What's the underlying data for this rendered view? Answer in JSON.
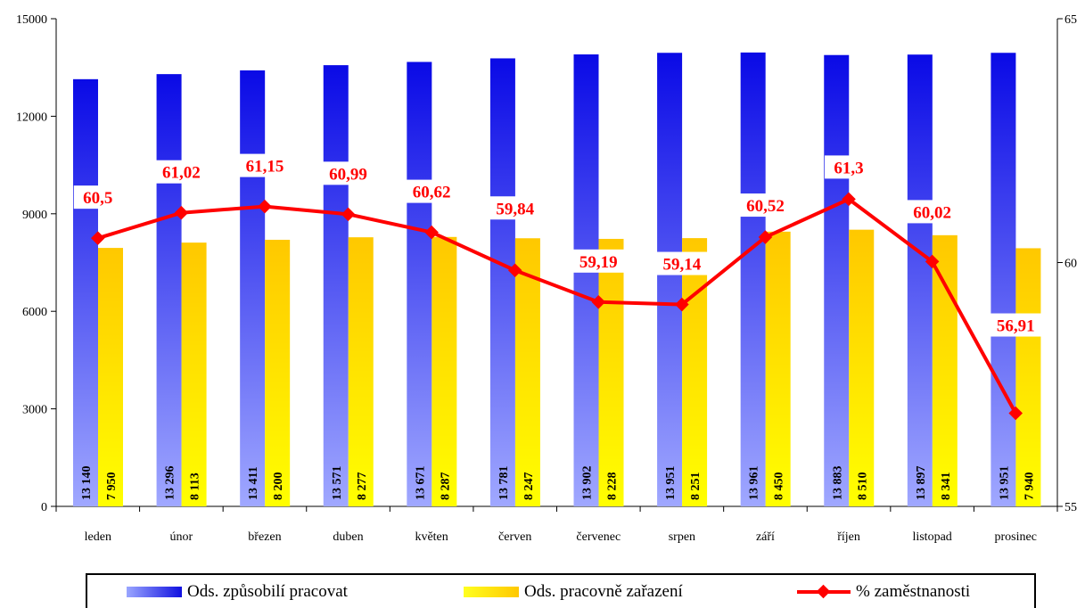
{
  "chart_data": {
    "type": "bar",
    "categories": [
      "leden",
      "únor",
      "březen",
      "duben",
      "květen",
      "červen",
      "červenec",
      "srpen",
      "září",
      "říjen",
      "listopad",
      "prosinec"
    ],
    "series": [
      {
        "name": "Ods. způsobilí pracovat",
        "kind": "bar",
        "axis": "left",
        "values": [
          13140,
          13296,
          13411,
          13571,
          13671,
          13781,
          13902,
          13951,
          13961,
          13883,
          13897,
          13951
        ],
        "labels": [
          "13 140",
          "13 296",
          "13 411",
          "13 571",
          "13 671",
          "13 781",
          "13 902",
          "13 951",
          "13 961",
          "13 883",
          "13 897",
          "13 951"
        ],
        "color_top": "#0a0ae6",
        "color_bottom": "#a0a8ff"
      },
      {
        "name": "Ods. pracovně zařazení",
        "kind": "bar",
        "axis": "left",
        "values": [
          7950,
          8113,
          8200,
          8277,
          8287,
          8247,
          8228,
          8251,
          8450,
          8510,
          8341,
          7940
        ],
        "labels": [
          "7 950",
          "8 113",
          "8 200",
          "8 277",
          "8 287",
          "8 247",
          "8 228",
          "8 251",
          "8 450",
          "8 510",
          "8 341",
          "7 940"
        ],
        "color_top": "#ffc800",
        "color_bottom": "#ffff00"
      },
      {
        "name": "% zaměstnanosti",
        "kind": "line",
        "axis": "right",
        "values": [
          60.5,
          61.02,
          61.15,
          60.99,
          60.62,
          59.84,
          59.19,
          59.14,
          60.52,
          61.3,
          60.02,
          56.91
        ],
        "labels": [
          "60,5",
          "61,02",
          "61,15",
          "60,99",
          "60,62",
          "59,84",
          "59,19",
          "59,14",
          "60,52",
          "61,3",
          "60,02",
          "56,91"
        ],
        "color": "#ff0000"
      }
    ],
    "left_axis": {
      "ylim": [
        0,
        15000
      ],
      "ticks": [
        "0",
        "3000",
        "6000",
        "9000",
        "12000",
        "15000"
      ]
    },
    "right_axis": {
      "ylim": [
        55,
        65
      ],
      "ticks": [
        "55",
        "60",
        "65"
      ]
    },
    "title": "",
    "xlabel": "",
    "ylabel": "",
    "grid": false,
    "legend_position": "bottom"
  },
  "legend": {
    "blue_label": "Ods. způsobilí pracovat",
    "yellow_label": "Ods. pracovně zařazení",
    "line_label": "% zaměstnanosti"
  }
}
